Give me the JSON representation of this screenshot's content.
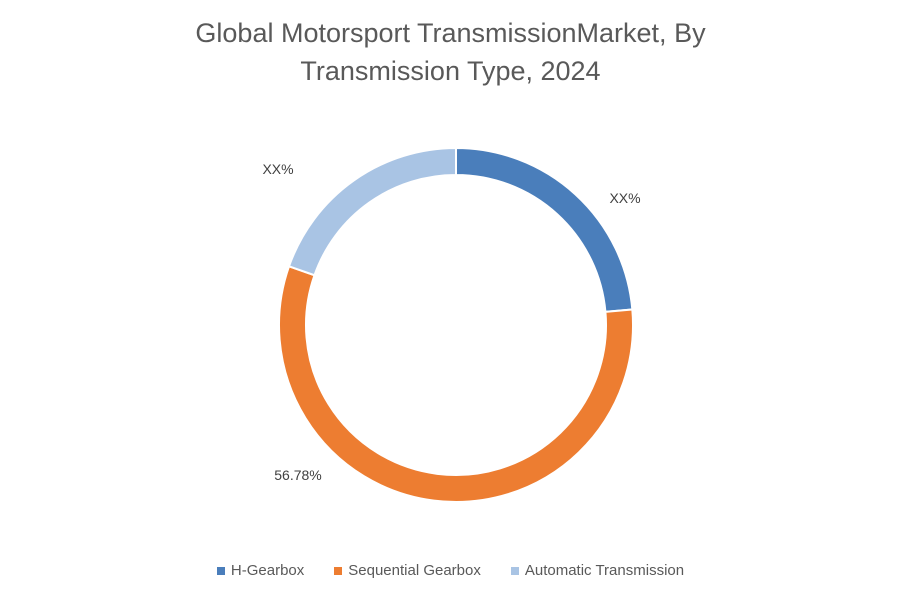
{
  "chart_data": {
    "type": "pie",
    "variant": "donut",
    "title_line1": "Global Motorsport TransmissionMarket, By",
    "title_line2": "Transmission Type, 2024",
    "categories": [
      "H-Gearbox",
      "Sequential Gearbox",
      "Automatic Transmission"
    ],
    "values": [
      23.6,
      56.78,
      19.62
    ],
    "data_labels": [
      "XX%",
      "56.78%",
      "XX%"
    ],
    "colors": [
      "#4a7ebb",
      "#ed7d31",
      "#a9c4e4"
    ],
    "legend_position": "bottom"
  }
}
